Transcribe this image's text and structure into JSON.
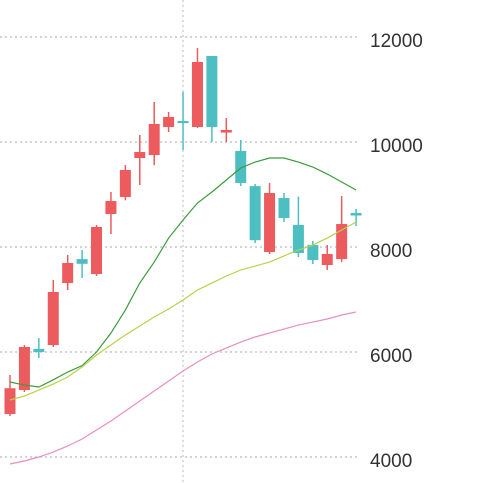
{
  "chart_data": {
    "type": "candlestick",
    "categories": [
      null,
      null,
      null,
      null,
      null,
      null,
      null,
      null,
      null,
      null,
      null,
      null,
      null,
      null,
      null,
      null,
      null,
      null,
      null,
      null,
      null,
      null,
      null,
      null,
      null
    ],
    "open": [
      4820,
      5276,
      6060,
      6133,
      7314,
      7770,
      7486,
      8629,
      8952,
      9695,
      9752,
      10286,
      10400,
      10286,
      11640,
      10180,
      9830,
      9160,
      7905,
      8933,
      8420,
      8038,
      7657,
      7771,
      8650
    ],
    "high": [
      5562,
      6133,
      6267,
      7371,
      7848,
      7943,
      8420,
      9048,
      9562,
      10133,
      10762,
      10571,
      10952,
      11790,
      11640,
      10457,
      10038,
      9200,
      9219,
      9029,
      8960,
      8114,
      8038,
      8971,
      8724
    ],
    "low": [
      4781,
      5238,
      5886,
      6095,
      7181,
      7410,
      7448,
      8248,
      8890,
      9181,
      9560,
      10190,
      9848,
      10266,
      10000,
      10000,
      9162,
      8076,
      7867,
      8476,
      7810,
      7676,
      7562,
      7714,
      8400
    ],
    "close": [
      5310,
      6095,
      6000,
      7143,
      7695,
      7680,
      8381,
      8876,
      9467,
      9810,
      10343,
      10476,
      10360,
      11524,
      10286,
      10230,
      9220,
      8130,
      9029,
      8552,
      7886,
      7752,
      7867,
      8438,
      8600
    ],
    "up_color": "#ec5b5e",
    "down_color": "#4dbfc2",
    "lines": [
      {
        "color": "#3d9a3d",
        "values": [
          5429,
          5370,
          5333,
          5470,
          5619,
          5740,
          6000,
          6362,
          6800,
          7314,
          7714,
          8171,
          8514,
          8838,
          9048,
          9276,
          9505,
          9619,
          9695,
          9695,
          9619,
          9524,
          9390,
          9238,
          9086
        ]
      },
      {
        "color": "#b8d14c",
        "values": [
          5086,
          5162,
          5276,
          5390,
          5524,
          5714,
          5943,
          6133,
          6324,
          6495,
          6667,
          6819,
          6990,
          7181,
          7314,
          7448,
          7562,
          7638,
          7714,
          7829,
          7943,
          8038,
          8171,
          8324,
          8476
        ]
      },
      {
        "color": "#e78fbf",
        "values": [
          3867,
          3924,
          4000,
          4095,
          4210,
          4343,
          4514,
          4686,
          4876,
          5067,
          5257,
          5448,
          5638,
          5810,
          5962,
          6076,
          6190,
          6286,
          6362,
          6438,
          6514,
          6571,
          6629,
          6705,
          6762
        ]
      }
    ],
    "ylim": [
      3505,
      12705
    ],
    "yticks": [
      4000,
      6000,
      8000,
      10000,
      12000
    ],
    "grid": true
  }
}
